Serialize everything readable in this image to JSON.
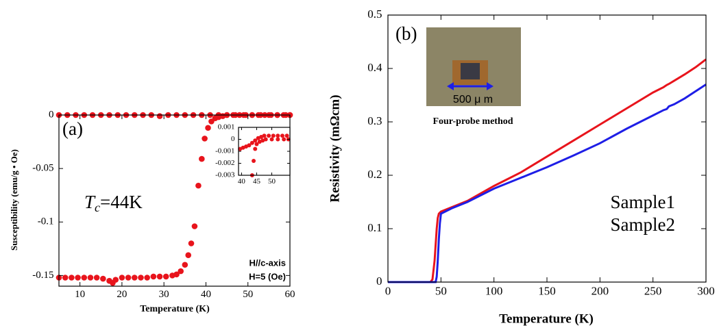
{
  "chart_data": [
    {
      "type": "scatter",
      "x_label": "Temperature (K)",
      "y_label": "Susceptibility (emu/g • Oe)",
      "xlim": [
        5,
        60
      ],
      "ylim": [
        -0.16,
        0
      ],
      "xticks": [
        10,
        20,
        30,
        40,
        50,
        60
      ],
      "yticks": [
        0,
        -0.05,
        -0.1,
        -0.15
      ],
      "annotations": [
        "(a)",
        "H//c-axis",
        "H=5 (Oe)"
      ],
      "tc_label": {
        "symbol": "T",
        "subscript": "c",
        "text": "=44K"
      },
      "series": [
        {
          "color": "#e8141c",
          "x": [
            5,
            6.5,
            8,
            9.5,
            11,
            12.5,
            14,
            15.5,
            17,
            17.8,
            18.5,
            20,
            21.5,
            23,
            24.5,
            26,
            27.5,
            29,
            30.5,
            32,
            33,
            34,
            35,
            35.8,
            36.5,
            37.3,
            38.2,
            39,
            39.7,
            40.5,
            41.3,
            42.2,
            43,
            44,
            45,
            46.5,
            48,
            49.5,
            51,
            52.5,
            54,
            55.5,
            57,
            58.5,
            60
          ],
          "values": [
            -0.152,
            -0.152,
            -0.152,
            -0.152,
            -0.152,
            -0.152,
            -0.152,
            -0.153,
            -0.155,
            -0.157,
            -0.154,
            -0.152,
            -0.152,
            -0.152,
            -0.152,
            -0.152,
            -0.151,
            -0.151,
            -0.151,
            -0.15,
            -0.149,
            -0.146,
            -0.14,
            -0.131,
            -0.12,
            -0.104,
            -0.066,
            -0.041,
            -0.022,
            -0.012,
            -0.006,
            -0.003,
            -0.002,
            -0.001,
            0,
            0,
            0,
            0,
            0,
            0,
            0,
            0,
            0,
            0,
            0
          ]
        },
        {
          "color": "#e8141c",
          "x": [
            5,
            7,
            9,
            11,
            13,
            15,
            17,
            19,
            21,
            23,
            25,
            27,
            29,
            31,
            33,
            35,
            37,
            39,
            41,
            43,
            45,
            47,
            49,
            51,
            53,
            55,
            57,
            59,
            60
          ],
          "values": [
            0,
            0,
            0,
            0,
            0,
            0,
            0,
            0,
            0,
            0,
            0,
            0,
            -0.001,
            0,
            0,
            0,
            0,
            0,
            0,
            0,
            0,
            0,
            0,
            0,
            0,
            0,
            0,
            0,
            0
          ]
        }
      ]
    },
    {
      "type": "scatter",
      "xlim": [
        39,
        56
      ],
      "ylim": [
        -0.003,
        0.001
      ],
      "xticks": [
        40,
        45,
        50
      ],
      "yticks": [
        0.001,
        0,
        -0.001,
        -0.002,
        -0.003
      ],
      "series": [
        {
          "color": "#e8141c",
          "x": [
            39.5,
            40.5,
            41.5,
            42.5,
            43.5,
            44.5,
            45.5,
            46.5,
            47.5,
            49,
            50.5,
            52,
            53.5,
            55
          ],
          "values": [
            -0.0008,
            -0.0007,
            -0.0006,
            -0.0005,
            -0.0003,
            -0.0001,
            0.0001,
            0.0002,
            0.0003,
            0.0003,
            0.0003,
            0.0003,
            0.0003,
            0.0003
          ]
        },
        {
          "color": "#e8141c",
          "x": [
            43.5,
            44,
            44.5,
            45,
            46,
            47,
            48,
            50,
            52,
            54,
            55.5
          ],
          "values": [
            -0.003,
            -0.0018,
            -0.0008,
            -0.0004,
            -0.0002,
            -0.0001,
            0,
            0,
            0,
            0,
            0
          ]
        }
      ]
    },
    {
      "type": "line",
      "x_label": "Temperature (K)",
      "y_label": "Resistivity (mΩcm)",
      "xlim": [
        0,
        300
      ],
      "ylim": [
        0,
        0.5
      ],
      "xticks": [
        0,
        50,
        100,
        150,
        200,
        250,
        300
      ],
      "yticks": [
        0,
        0.1,
        0.2,
        0.3,
        0.4,
        0.5
      ],
      "annotations": [
        "(b)",
        "500 μ m",
        "Four-probe method"
      ],
      "x": [
        0,
        20,
        40,
        42,
        44,
        45,
        46,
        47,
        48,
        49,
        50,
        60,
        75,
        100,
        125,
        150,
        175,
        200,
        225,
        250,
        260,
        263,
        265,
        270,
        280,
        290,
        300
      ],
      "series": [
        {
          "name": "Sample1",
          "color": "#e8141c",
          "values": [
            0,
            0,
            0,
            0.005,
            0.04,
            0.07,
            0.1,
            0.12,
            0.128,
            0.13,
            0.132,
            0.14,
            0.152,
            0.18,
            0.205,
            0.235,
            0.265,
            0.295,
            0.325,
            0.355,
            0.365,
            0.369,
            0.371,
            0.377,
            0.389,
            0.402,
            0.417
          ]
        },
        {
          "name": "Sample2",
          "color": "#1e1ee6",
          "values": [
            0,
            0,
            0,
            0,
            0,
            0,
            0.01,
            0.04,
            0.08,
            0.11,
            0.128,
            0.138,
            0.15,
            0.175,
            0.195,
            0.215,
            0.237,
            0.26,
            0.287,
            0.312,
            0.322,
            0.324,
            0.329,
            0.333,
            0.344,
            0.357,
            0.37
          ]
        }
      ]
    }
  ]
}
